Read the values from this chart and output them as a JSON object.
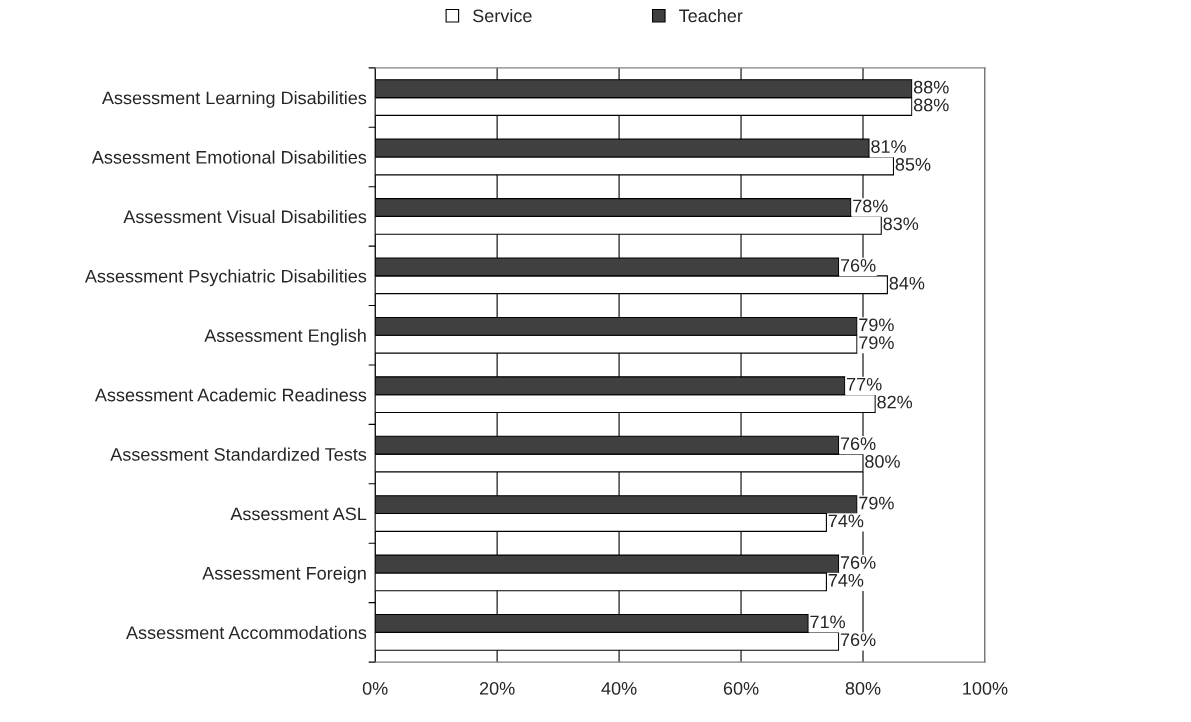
{
  "chart_data": {
    "type": "bar",
    "orientation": "horizontal",
    "categories": [
      "Assessment Learning Disabilities",
      "Assessment Emotional Disabilities",
      "Assessment Visual Disabilities",
      "Assessment Psychiatric Disabilities",
      "Assessment English",
      "Assessment Academic Readiness",
      "Assessment Standardized Tests",
      "Assessment ASL",
      "Assessment Foreign",
      "Assessment Accommodations"
    ],
    "series": [
      {
        "name": "Service",
        "color": "#ffffff",
        "values": [
          88,
          85,
          83,
          84,
          79,
          82,
          80,
          74,
          74,
          76
        ],
        "value_labels": [
          "88%",
          "85%",
          "83%",
          "84%",
          "79%",
          "82%",
          "80%",
          "74%",
          "74%",
          "76%"
        ]
      },
      {
        "name": "Teacher",
        "color": "#404040",
        "values": [
          88,
          81,
          78,
          76,
          79,
          77,
          76,
          79,
          76,
          71
        ],
        "value_labels": [
          "88%",
          "81%",
          "78%",
          "76%",
          "79%",
          "77%",
          "76%",
          "79%",
          "76%",
          "71%"
        ]
      }
    ],
    "xlim": [
      0,
      100
    ],
    "xticks": [
      {
        "value": 0,
        "label": "0%"
      },
      {
        "value": 20,
        "label": "20%"
      },
      {
        "value": 40,
        "label": "40%"
      },
      {
        "value": 60,
        "label": "60%"
      },
      {
        "value": 80,
        "label": "80%"
      },
      {
        "value": 100,
        "label": "100%"
      }
    ],
    "grid": "x",
    "legend": "top",
    "marker": "square"
  }
}
